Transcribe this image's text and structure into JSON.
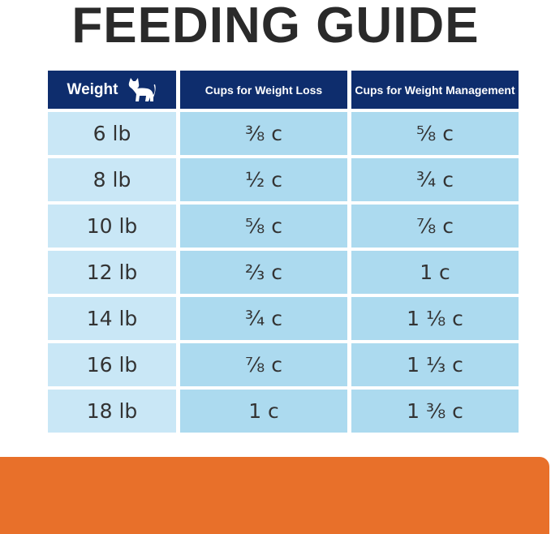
{
  "title": "FEEDING GUIDE",
  "table": {
    "headers": [
      "Weight",
      "Cups for Weight Loss",
      "Cups for Weight Management"
    ],
    "rows": [
      [
        "6 lb",
        "⅜ c",
        "⅝ c"
      ],
      [
        "8 lb",
        "½ c",
        "¾ c"
      ],
      [
        "10 lb",
        "⅝ c",
        "⅞ c"
      ],
      [
        "12 lb",
        "⅔ c",
        "1 c"
      ],
      [
        "14 lb",
        "¾ c",
        "1 ⅛ c"
      ],
      [
        "16 lb",
        "⅞ c",
        "1 ⅓ c"
      ],
      [
        "18 lb",
        "1 c",
        "1 ⅜ c"
      ]
    ]
  }
}
